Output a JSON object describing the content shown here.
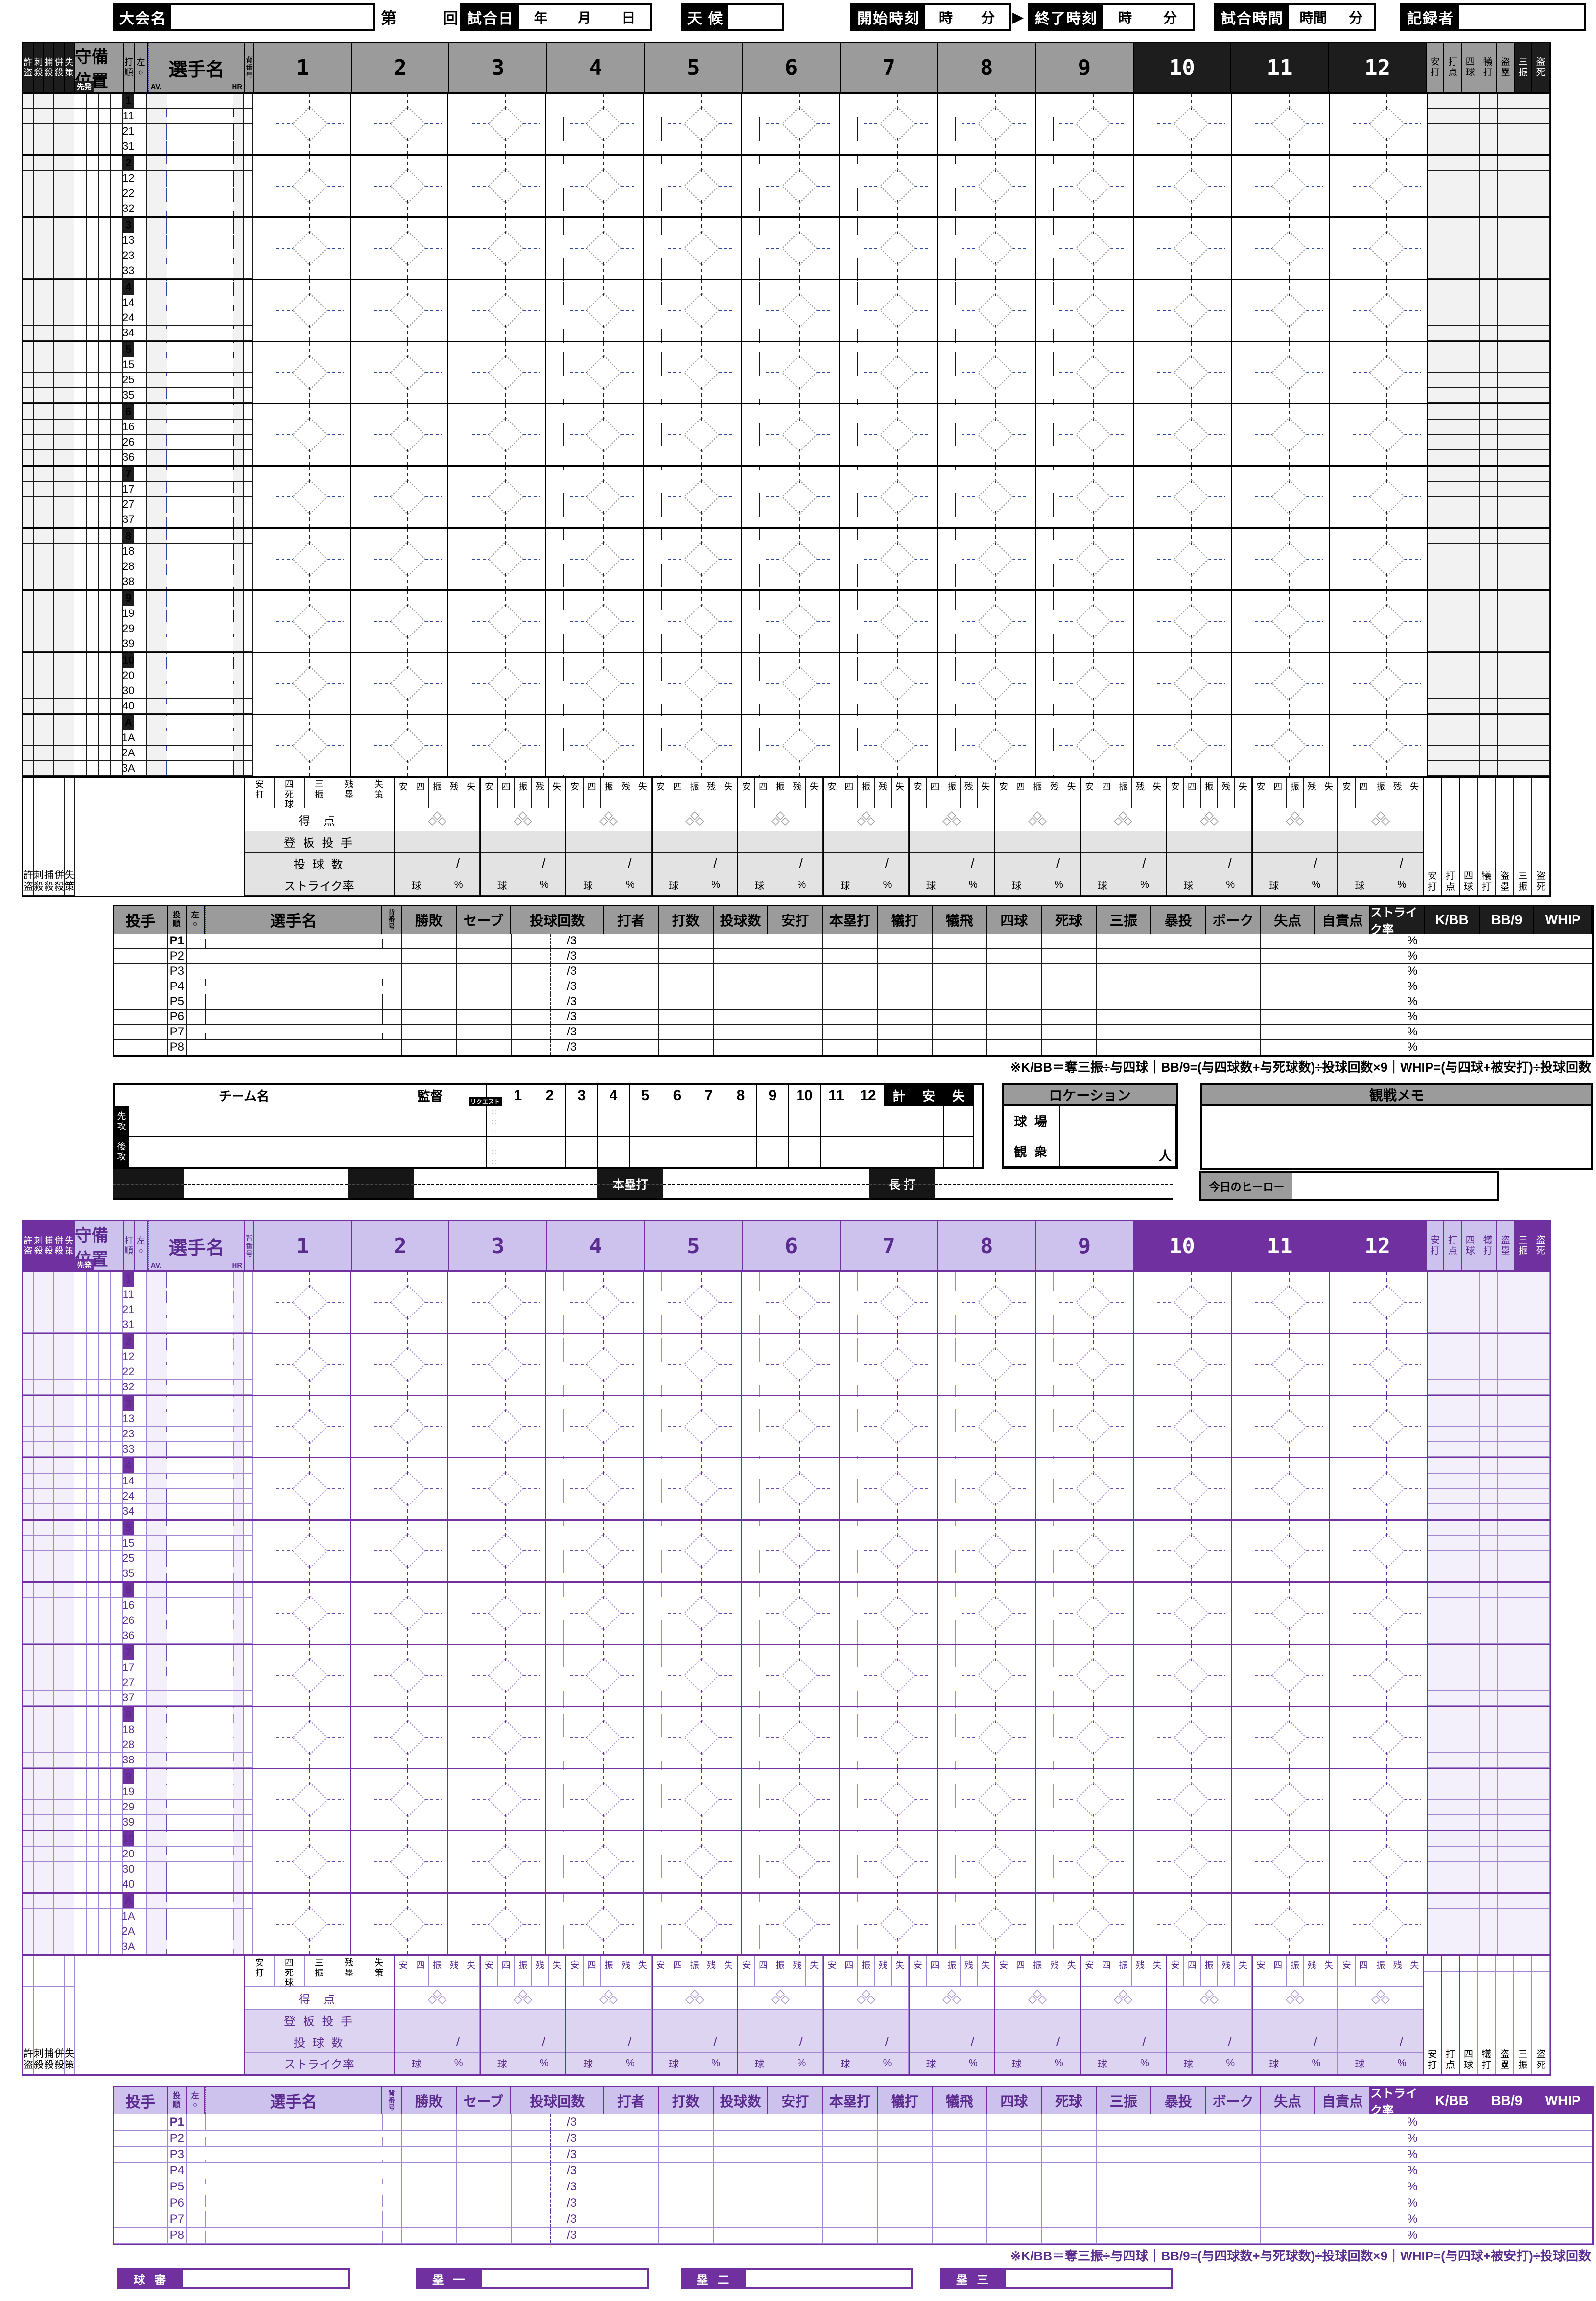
{
  "header": {
    "tournament_label": "大会名",
    "round_prefix": "第",
    "round_suffix": "回戦",
    "date_label": "試合日",
    "date_units": [
      "年",
      "月",
      "日"
    ],
    "weather_label": "天 候",
    "start_label": "開始時刻",
    "time_units": [
      "時",
      "分"
    ],
    "arrow": "▶",
    "end_label": "終了時刻",
    "duration_label": "試合時間",
    "duration_units": [
      "時間",
      "分"
    ],
    "scorer_label": "記録者"
  },
  "sheet": {
    "left_cols": [
      "許盗",
      "刺殺",
      "捕殺",
      "併殺",
      "失策"
    ],
    "position_label": "守備位置",
    "starter_badge": "先発",
    "order_label": "打順",
    "left_circle_label": "左○",
    "player_label": "選手名",
    "av_label": "AV.",
    "hr_label": "HR",
    "number_label": "背番号",
    "innings": [
      "1",
      "2",
      "3",
      "4",
      "5",
      "6",
      "7",
      "8",
      "9",
      "10",
      "11",
      "12"
    ],
    "right_cols": [
      "安打",
      "打点",
      "四球",
      "犠打",
      "盗塁",
      "三振",
      "盗死"
    ],
    "blocks": [
      {
        "order": "1",
        "subs": [
          "11",
          "21",
          "31"
        ]
      },
      {
        "order": "2",
        "subs": [
          "12",
          "22",
          "32"
        ]
      },
      {
        "order": "3",
        "subs": [
          "13",
          "23",
          "33"
        ]
      },
      {
        "order": "4",
        "subs": [
          "14",
          "24",
          "34"
        ]
      },
      {
        "order": "5",
        "subs": [
          "15",
          "25",
          "35"
        ]
      },
      {
        "order": "6",
        "subs": [
          "16",
          "26",
          "36"
        ]
      },
      {
        "order": "7",
        "subs": [
          "17",
          "27",
          "37"
        ]
      },
      {
        "order": "8",
        "subs": [
          "18",
          "28",
          "38"
        ]
      },
      {
        "order": "9",
        "subs": [
          "19",
          "29",
          "39"
        ]
      },
      {
        "order": "10",
        "subs": [
          "20",
          "30",
          "40"
        ]
      },
      {
        "order": "A",
        "subs": [
          "1A",
          "2A",
          "3A"
        ]
      }
    ],
    "summary": {
      "wide_labels": [
        "安打",
        "四死球",
        "三振",
        "残塁",
        "失策"
      ],
      "short_labels": [
        "安",
        "四",
        "振",
        "残",
        "失"
      ],
      "score_label": "得 点",
      "pitcher_label": "登 板 投 手",
      "pitches_label": "投 球 数",
      "strike_label": "ストライク率",
      "slash": "/",
      "ball_label": "球",
      "pct_label": "%",
      "left_total_labels": [
        "許盗",
        "刺殺",
        "捕殺",
        "併殺",
        "失策"
      ]
    }
  },
  "pitchers": {
    "table_label": "投手",
    "order_label": "投順",
    "left_circle_label": "左○",
    "player_label": "選手名",
    "number_label": "背番号",
    "columns": [
      "勝敗",
      "セーブ",
      "投球回数",
      "打者",
      "打数",
      "投球数",
      "安打",
      "本塁打",
      "犠打",
      "犠飛",
      "四球",
      "死球",
      "三振",
      "暴投",
      "ボーク",
      "失点",
      "自責点",
      "ストライク率",
      "K/BB",
      "BB/9",
      "WHIP"
    ],
    "rows": [
      "P1",
      "P2",
      "P3",
      "P4",
      "P5",
      "P6",
      "P7",
      "P8"
    ],
    "innings_cell": "/3",
    "strike_cell": "%",
    "footnote": "※K/BB＝奪三振÷与四球｜BB/9=(与四球数+与死球数)÷投球回数×9｜WHIP=(与四球+被安打)÷投球回数"
  },
  "teams": {
    "name_label": "チーム名",
    "manager_label": "監督",
    "request_label": "リクエスト",
    "innings": [
      "1",
      "2",
      "3",
      "4",
      "5",
      "6",
      "7",
      "8",
      "9",
      "10",
      "11",
      "12"
    ],
    "total_labels": [
      "計",
      "安",
      "失"
    ],
    "rows": [
      "先攻",
      "後攻"
    ]
  },
  "location": {
    "title": "ロケーション",
    "stadium_label": "球 場",
    "attendance_label": "観 衆",
    "attendance_unit": "人"
  },
  "memo": {
    "title": "観戦メモ"
  },
  "extras": {
    "boxes": [
      {
        "label": ""
      },
      {
        "label": ""
      },
      {
        "label": "本塁打"
      },
      {
        "label": "長 打"
      }
    ],
    "hero_label": "今日のヒーロー"
  },
  "umpires": [
    "球 審",
    "塁 一",
    "塁 二",
    "塁 三"
  ],
  "colors": {
    "black": "#000000",
    "dark_gray": "#1d1d1d",
    "mid_gray": "#9b9b9b",
    "light_gray": "#f2f2f2",
    "summary_gray": "#e3e3e3",
    "purple_dark": "#7030a0",
    "purple_light": "#cdc2ee",
    "dash_blue": "#2b4a9e"
  }
}
